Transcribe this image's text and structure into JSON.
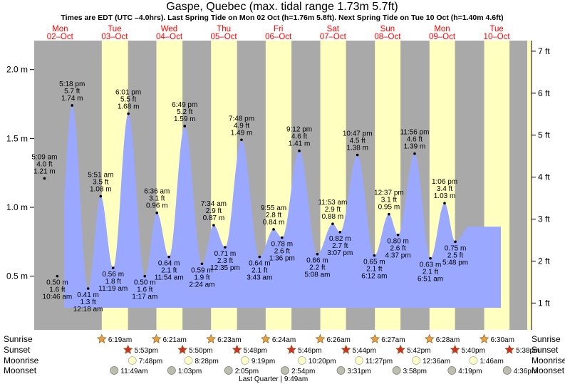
{
  "chart_data": {
    "type": "area",
    "title": "Gaspe, Quebec (max. tidal range 1.73m 5.7ft)",
    "subtitle": "Times are EDT (UTC –4.0hrs). Last Spring Tide on Mon 02 Oct (h=1.76m 5.8ft). Next Spring Tide on Tue 10 Oct (h=1.40m 4.6ft)",
    "ylabel_left_unit": "m",
    "ylabel_right_unit": "ft",
    "ylim_m": [
      0.2,
      2.2
    ],
    "left_ticks": [
      "0.5 m",
      "1.0 m",
      "1.5 m",
      "2.0 m"
    ],
    "right_ticks": [
      "1 ft",
      "2 ft",
      "3 ft",
      "4 ft",
      "5 ft",
      "6 ft",
      "7 ft"
    ],
    "days": [
      {
        "dow": "Mon",
        "date": "02–Oct"
      },
      {
        "dow": "Tue",
        "date": "03–Oct"
      },
      {
        "dow": "Wed",
        "date": "04–Oct"
      },
      {
        "dow": "Thu",
        "date": "05–Oct"
      },
      {
        "dow": "Fri",
        "date": "06–Oct"
      },
      {
        "dow": "Sat",
        "date": "07–Oct"
      },
      {
        "dow": "Sun",
        "date": "08–Oct"
      },
      {
        "dow": "Mon",
        "date": "09–Oct"
      },
      {
        "dow": "Tue",
        "date": "10–Oct"
      }
    ],
    "tides": [
      {
        "kind": "high",
        "time": "5:09 am",
        "ft": "4.0 ft",
        "m": "1.21 m",
        "day": 0.214,
        "h": 1.21
      },
      {
        "kind": "low",
        "time": "10:46 am",
        "ft": "1.6 ft",
        "m": "0.50 m",
        "day": 0.449,
        "h": 0.5
      },
      {
        "kind": "high",
        "time": "5:18 pm",
        "ft": "5.7 ft",
        "m": "1.74 m",
        "day": 0.721,
        "h": 1.74
      },
      {
        "kind": "low",
        "time": "12:18 am",
        "ft": "1.3 ft",
        "m": "0.41 m",
        "day": 1.013,
        "h": 0.41
      },
      {
        "kind": "high",
        "time": "5:51 am",
        "ft": "3.5 ft",
        "m": "1.08 m",
        "day": 1.244,
        "h": 1.08
      },
      {
        "kind": "low",
        "time": "11:19 am",
        "ft": "1.8 ft",
        "m": "0.56 m",
        "day": 1.472,
        "h": 0.56
      },
      {
        "kind": "high",
        "time": "6:01 pm",
        "ft": "5.5 ft",
        "m": "1.68 m",
        "day": 1.751,
        "h": 1.68
      },
      {
        "kind": "low",
        "time": "1:17 am",
        "ft": "1.6 ft",
        "m": "0.50 m",
        "day": 2.053,
        "h": 0.5
      },
      {
        "kind": "high",
        "time": "6:36 am",
        "ft": "3.1 ft",
        "m": "0.96 m",
        "day": 2.275,
        "h": 0.96
      },
      {
        "kind": "low",
        "time": "11:54 am",
        "ft": "2.1 ft",
        "m": "0.64 m",
        "day": 2.496,
        "h": 0.64
      },
      {
        "kind": "high",
        "time": "6:49 pm",
        "ft": "5.2 ft",
        "m": "1.59 m",
        "day": 2.784,
        "h": 1.59
      },
      {
        "kind": "low",
        "time": "2:24 am",
        "ft": "1.9 ft",
        "m": "0.59 m",
        "day": 3.1,
        "h": 0.59
      },
      {
        "kind": "high",
        "time": "7:34 am",
        "ft": "2.9 ft",
        "m": "0.87 m",
        "day": 3.315,
        "h": 0.87
      },
      {
        "kind": "low",
        "time": "12:35 pm",
        "ft": "2.3 ft",
        "m": "0.71 m",
        "day": 3.524,
        "h": 0.71
      },
      {
        "kind": "high",
        "time": "7:48 pm",
        "ft": "4.9 ft",
        "m": "1.49 m",
        "day": 3.825,
        "h": 1.49
      },
      {
        "kind": "low",
        "time": "3:43 am",
        "ft": "2.1 ft",
        "m": "0.64 m",
        "day": 4.155,
        "h": 0.64
      },
      {
        "kind": "high",
        "time": "9:55 am",
        "ft": "2.8 ft",
        "m": "0.84 m",
        "day": 4.413,
        "h": 0.84
      },
      {
        "kind": "low",
        "time": "1:36 pm",
        "ft": "2.6 ft",
        "m": "0.78 m",
        "day": 4.567,
        "h": 0.78
      },
      {
        "kind": "high",
        "time": "9:12 pm",
        "ft": "4.6 ft",
        "m": "1.41 m",
        "day": 4.883,
        "h": 1.41
      },
      {
        "kind": "low",
        "time": "5:08 am",
        "ft": "2.2 ft",
        "m": "0.66 m",
        "day": 5.214,
        "h": 0.66
      },
      {
        "kind": "high",
        "time": "11:53 am",
        "ft": "2.9 ft",
        "m": "0.88 m",
        "day": 5.495,
        "h": 0.88
      },
      {
        "kind": "low",
        "time": "3:07 pm",
        "ft": "2.7 ft",
        "m": "0.82 m",
        "day": 5.63,
        "h": 0.82
      },
      {
        "kind": "high",
        "time": "10:47 pm",
        "ft": "4.5 ft",
        "m": "1.38 m",
        "day": 5.949,
        "h": 1.38
      },
      {
        "kind": "low",
        "time": "6:12 am",
        "ft": "2.1 ft",
        "m": "0.65 m",
        "day": 6.258,
        "h": 0.65
      },
      {
        "kind": "high",
        "time": "12:37 pm",
        "ft": "3.1 ft",
        "m": "0.95 m",
        "day": 6.526,
        "h": 0.95
      },
      {
        "kind": "low",
        "time": "4:37 pm",
        "ft": "2.6 ft",
        "m": "0.80 m",
        "day": 6.692,
        "h": 0.8
      },
      {
        "kind": "high",
        "time": "11:56 pm",
        "ft": "4.6 ft",
        "m": "1.39 m",
        "day": 6.997,
        "h": 1.39
      },
      {
        "kind": "low",
        "time": "6:51 am",
        "ft": "2.1 ft",
        "m": "0.63 m",
        "day": 7.285,
        "h": 0.63
      },
      {
        "kind": "high",
        "time": "1:06 pm",
        "ft": "3.4 ft",
        "m": "1.03 m",
        "day": 7.546,
        "h": 1.03
      },
      {
        "kind": "low",
        "time": "5:48 pm",
        "ft": "2.5 ft",
        "m": "0.75 m",
        "day": 7.742,
        "h": 0.75
      }
    ],
    "sunrise": [
      {
        "time": "6:19am",
        "day": 1.264
      },
      {
        "time": "6:21am",
        "day": 2.265
      },
      {
        "time": "6:23am",
        "day": 3.266
      },
      {
        "time": "6:24am",
        "day": 4.267
      },
      {
        "time": "6:26am",
        "day": 5.268
      },
      {
        "time": "6:27am",
        "day": 6.269
      },
      {
        "time": "6:28am",
        "day": 7.269
      },
      {
        "time": "6:30am",
        "day": 8.271
      }
    ],
    "sunset": [
      {
        "time": "5:53pm",
        "day": 1.745
      },
      {
        "time": "5:50pm",
        "day": 2.743
      },
      {
        "time": "5:48pm",
        "day": 3.742
      },
      {
        "time": "5:46pm",
        "day": 4.74
      },
      {
        "time": "5:44pm",
        "day": 5.739
      },
      {
        "time": "5:42pm",
        "day": 6.738
      },
      {
        "time": "5:40pm",
        "day": 7.736
      },
      {
        "time": "5:38pm",
        "day": 8.735
      }
    ],
    "moonrise": [
      {
        "time": "7:48pm",
        "day": 1.825
      },
      {
        "time": "8:28pm",
        "day": 2.853
      },
      {
        "time": "9:19pm",
        "day": 3.888
      },
      {
        "time": "10:20pm",
        "day": 4.931
      },
      {
        "time": "11:27pm",
        "day": 5.978
      },
      {
        "time": "12:36am",
        "day": 7.025
      },
      {
        "time": "1:46am",
        "day": 8.074
      }
    ],
    "moonset": [
      {
        "time": "11:49am",
        "day": 1.492
      },
      {
        "time": "1:03pm",
        "day": 2.544
      },
      {
        "time": "2:05pm",
        "day": 3.587
      },
      {
        "time": "2:54pm",
        "day": 4.621
      },
      {
        "time": "3:31pm",
        "day": 5.646
      },
      {
        "time": "3:58pm",
        "day": 6.666
      },
      {
        "time": "4:19pm",
        "day": 7.68
      },
      {
        "time": "4:36pm",
        "day": 8.692
      }
    ],
    "row_labels": {
      "sunrise": "Sunrise",
      "sunset": "Sunset",
      "moonrise": "Moonrise",
      "moonset": "Moonset"
    },
    "moon_phase": {
      "label": "Last Quarter | 9:49am",
      "day": 4.409
    },
    "colors": {
      "night": "#a9a9a9",
      "day": "#ffffc0",
      "water": "#9aa8ff",
      "title": "#000000",
      "weekday": "#ff0000",
      "sun_star": "#e8a040",
      "sunset_star": "#d03020",
      "moon_disc": "#ffffcc",
      "moonset_disc": "#bdbdb0"
    }
  }
}
